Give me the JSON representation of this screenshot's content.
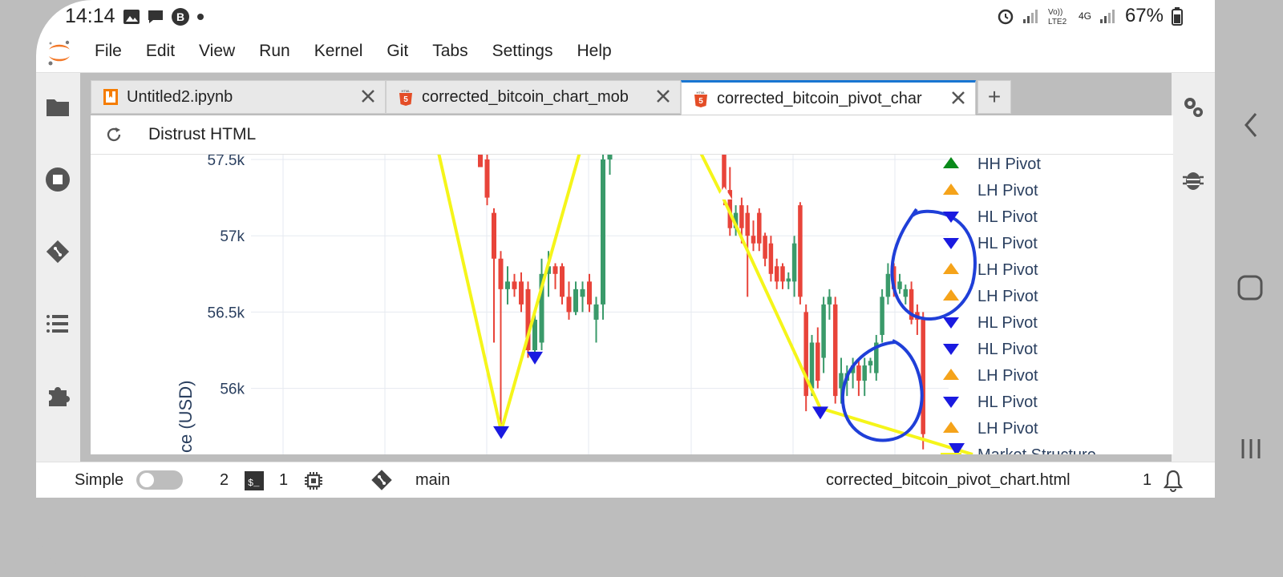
{
  "status_bar": {
    "time": "14:14",
    "network": "4G",
    "battery": "67%"
  },
  "menu": {
    "items": [
      "File",
      "Edit",
      "View",
      "Run",
      "Kernel",
      "Git",
      "Tabs",
      "Settings",
      "Help"
    ]
  },
  "tabs": [
    {
      "label": "Untitled2.ipynb",
      "icon": "notebook-icon",
      "active": false
    },
    {
      "label": "corrected_bitcoin_chart_mob",
      "icon": "html5-icon",
      "active": false
    },
    {
      "label": "corrected_bitcoin_pivot_char",
      "icon": "html5-icon",
      "active": true
    }
  ],
  "toolbar": {
    "distrust_label": "Distrust HTML"
  },
  "chart_data": {
    "type": "candlestick",
    "ylabel": "ce (USD)",
    "yticks": [
      "57.5k",
      "57k",
      "56.5k",
      "56k"
    ],
    "legend": [
      {
        "label": "HH Pivot",
        "marker": "up",
        "color": "#0a8a1a"
      },
      {
        "label": "LH Pivot",
        "marker": "up",
        "color": "#f5a31a"
      },
      {
        "label": "HL Pivot",
        "marker": "down",
        "color": "#1a1ae0"
      },
      {
        "label": "HL Pivot",
        "marker": "down",
        "color": "#1a1ae0"
      },
      {
        "label": "LH Pivot",
        "marker": "up",
        "color": "#f5a31a"
      },
      {
        "label": "LH Pivot",
        "marker": "up",
        "color": "#f5a31a"
      },
      {
        "label": "HL Pivot",
        "marker": "down",
        "color": "#1a1ae0"
      },
      {
        "label": "HL Pivot",
        "marker": "down",
        "color": "#1a1ae0"
      },
      {
        "label": "LH Pivot",
        "marker": "up",
        "color": "#f5a31a"
      },
      {
        "label": "HL Pivot",
        "marker": "down",
        "color": "#1a1ae0"
      },
      {
        "label": "LH Pivot",
        "marker": "up",
        "color": "#f5a31a"
      },
      {
        "label": "Market Structure",
        "marker": "line",
        "color": "#f5f51a"
      }
    ],
    "ylim": [
      55700,
      57520
    ],
    "up_color": "#3a9a6a",
    "down_color": "#e8443a",
    "candles_left": [
      {
        "o": 57600,
        "h": 57700,
        "l": 57500,
        "c": 57450
      },
      {
        "o": 57500,
        "h": 57560,
        "l": 57200,
        "c": 57250
      },
      {
        "o": 57150,
        "h": 57180,
        "l": 56300,
        "c": 56850
      },
      {
        "o": 56850,
        "h": 56900,
        "l": 55750,
        "c": 56650
      },
      {
        "o": 56650,
        "h": 56800,
        "l": 56550,
        "c": 56700
      },
      {
        "o": 56700,
        "h": 56750,
        "l": 56600,
        "c": 56650
      },
      {
        "o": 56700,
        "h": 56760,
        "l": 56500,
        "c": 56550
      },
      {
        "o": 56650,
        "h": 56700,
        "l": 56200,
        "c": 56250
      },
      {
        "o": 56250,
        "h": 56500,
        "l": 56200,
        "c": 56450
      },
      {
        "o": 56300,
        "h": 56850,
        "l": 56250,
        "c": 56750
      },
      {
        "o": 56750,
        "h": 56900,
        "l": 56600,
        "c": 56800
      },
      {
        "o": 56800,
        "h": 56820,
        "l": 56650,
        "c": 56750
      },
      {
        "o": 56800,
        "h": 56820,
        "l": 56550,
        "c": 56600
      },
      {
        "o": 56600,
        "h": 56700,
        "l": 56450,
        "c": 56500
      },
      {
        "o": 56500,
        "h": 56700,
        "l": 56480,
        "c": 56650
      },
      {
        "o": 56600,
        "h": 56700,
        "l": 56500,
        "c": 56650
      },
      {
        "o": 56700,
        "h": 56750,
        "l": 56500,
        "c": 56550
      },
      {
        "o": 56450,
        "h": 56600,
        "l": 56300,
        "c": 56550
      },
      {
        "o": 56550,
        "h": 57600,
        "l": 56450,
        "c": 57500
      },
      {
        "o": 57500,
        "h": 57600,
        "l": 57400,
        "c": 57550
      }
    ],
    "candles_right": [
      {
        "o": 57700,
        "h": 57750,
        "l": 57200,
        "c": 57250
      },
      {
        "o": 57300,
        "h": 57450,
        "l": 57000,
        "c": 57050
      },
      {
        "o": 57050,
        "h": 57200,
        "l": 57000,
        "c": 57150
      },
      {
        "o": 57200,
        "h": 57250,
        "l": 56950,
        "c": 57050
      },
      {
        "o": 57150,
        "h": 57200,
        "l": 56600,
        "c": 57000
      },
      {
        "o": 57000,
        "h": 57100,
        "l": 56900,
        "c": 56950
      },
      {
        "o": 57150,
        "h": 57180,
        "l": 56900,
        "c": 56950
      },
      {
        "o": 57000,
        "h": 57020,
        "l": 56800,
        "c": 56850
      },
      {
        "o": 56950,
        "h": 57000,
        "l": 56700,
        "c": 56750
      },
      {
        "o": 56800,
        "h": 56850,
        "l": 56650,
        "c": 56700
      },
      {
        "o": 56800,
        "h": 56820,
        "l": 56650,
        "c": 56700
      },
      {
        "o": 56700,
        "h": 56760,
        "l": 56650,
        "c": 56720
      },
      {
        "o": 56700,
        "h": 57000,
        "l": 56600,
        "c": 56950
      },
      {
        "o": 57200,
        "h": 57220,
        "l": 56550,
        "c": 56600
      },
      {
        "o": 56500,
        "h": 56550,
        "l": 55850,
        "c": 55950
      },
      {
        "o": 56000,
        "h": 56350,
        "l": 55950,
        "c": 56300
      },
      {
        "o": 56300,
        "h": 56400,
        "l": 56000,
        "c": 56050
      },
      {
        "o": 56200,
        "h": 56600,
        "l": 56100,
        "c": 56550
      },
      {
        "o": 56550,
        "h": 56650,
        "l": 56450,
        "c": 56600
      },
      {
        "o": 56550,
        "h": 56600,
        "l": 55900,
        "c": 55950
      },
      {
        "o": 56000,
        "h": 56200,
        "l": 55900,
        "c": 56100
      },
      {
        "o": 56050,
        "h": 56150,
        "l": 55950,
        "c": 56100
      },
      {
        "o": 56100,
        "h": 56200,
        "l": 56000,
        "c": 56150
      },
      {
        "o": 56150,
        "h": 56200,
        "l": 55950,
        "c": 56050
      },
      {
        "o": 56050,
        "h": 56200,
        "l": 55950,
        "c": 56150
      },
      {
        "o": 56150,
        "h": 56200,
        "l": 56100,
        "c": 56180
      },
      {
        "o": 56100,
        "h": 56350,
        "l": 56050,
        "c": 56300
      },
      {
        "o": 56350,
        "h": 56650,
        "l": 56300,
        "c": 56600
      },
      {
        "o": 56600,
        "h": 56820,
        "l": 56550,
        "c": 56750
      },
      {
        "o": 56800,
        "h": 56820,
        "l": 56600,
        "c": 56650
      },
      {
        "o": 56650,
        "h": 56750,
        "l": 56620,
        "c": 56700
      },
      {
        "o": 56600,
        "h": 56680,
        "l": 56550,
        "c": 56650
      },
      {
        "o": 56650,
        "h": 56700,
        "l": 56420,
        "c": 56450
      },
      {
        "o": 56500,
        "h": 56550,
        "l": 56350,
        "c": 56450
      },
      {
        "o": 56450,
        "h": 56500,
        "l": 55600,
        "c": 55700
      }
    ],
    "market_structure": [
      {
        "series": "left-bottom",
        "value": 55720
      },
      {
        "series": "left-hl",
        "value": 56240
      },
      {
        "series": "right-lh",
        "value": 57280
      },
      {
        "series": "right-hl",
        "value": 55870
      }
    ]
  },
  "statusline": {
    "mode_label": "Simple",
    "terminals_count": "2",
    "kernels_count": "1",
    "branch": "main",
    "filename": "corrected_bitcoin_pivot_chart.html",
    "notifications_count": "1"
  }
}
